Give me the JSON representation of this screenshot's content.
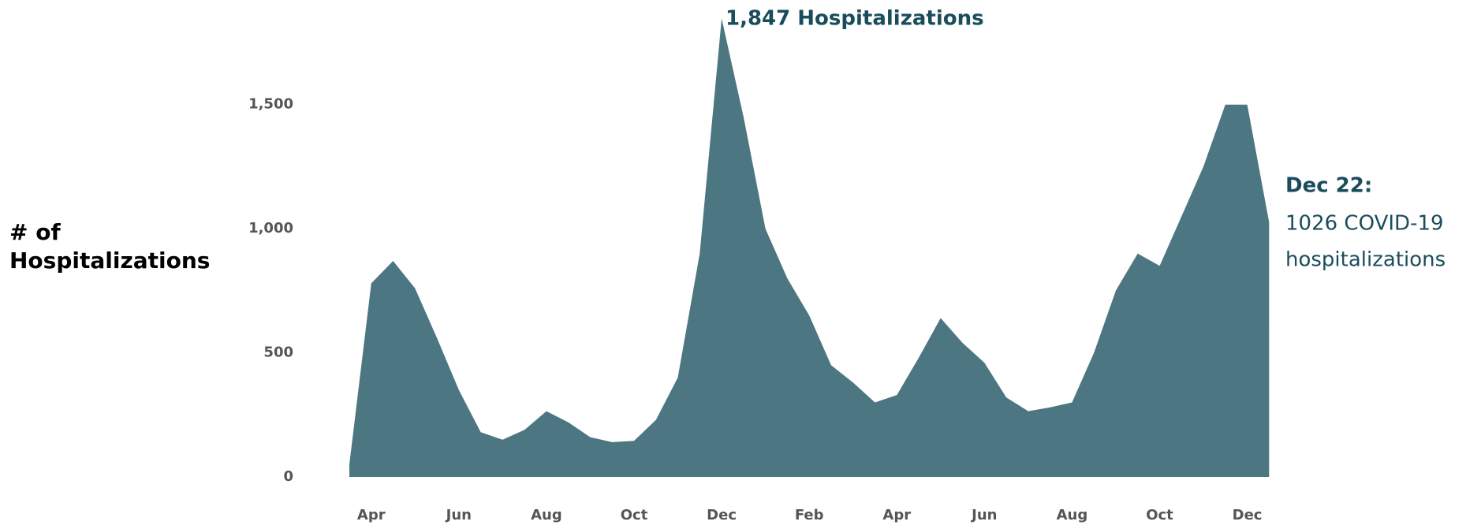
{
  "chart_data": {
    "type": "area",
    "ylabel": [
      "# of",
      "Hospitalizations"
    ],
    "color": "#4d7683",
    "categories": [
      null,
      "Apr",
      null,
      null,
      null,
      "Jun",
      null,
      null,
      null,
      "Aug",
      null,
      null,
      null,
      "Oct",
      null,
      null,
      null,
      "Dec",
      null,
      null,
      null,
      "Feb",
      null,
      null,
      null,
      "Apr",
      null,
      null,
      null,
      "Jun",
      null,
      null,
      null,
      "Aug",
      null,
      null,
      null,
      "Oct",
      null,
      null,
      null,
      "Dec",
      null
    ],
    "values": [
      50,
      780,
      870,
      760,
      560,
      350,
      180,
      150,
      190,
      265,
      220,
      160,
      140,
      145,
      230,
      400,
      900,
      1847,
      1450,
      1000,
      800,
      650,
      450,
      380,
      300,
      330,
      480,
      640,
      540,
      460,
      320,
      265,
      280,
      300,
      500,
      750,
      900,
      850,
      1050,
      1250,
      1500,
      1500,
      1026
    ],
    "ylim": [
      0,
      1880
    ],
    "yticks": [
      0,
      500,
      {
        "value": 1000,
        "label": "1,000"
      },
      {
        "value": 1500,
        "label": "1,500"
      }
    ],
    "grid": false,
    "annotations": {
      "peak": "1,847 Hospitalizations",
      "last_title": "Dec 22:",
      "last_line1": "1026 COVID-19",
      "last_line2": "hospitalizations"
    }
  }
}
